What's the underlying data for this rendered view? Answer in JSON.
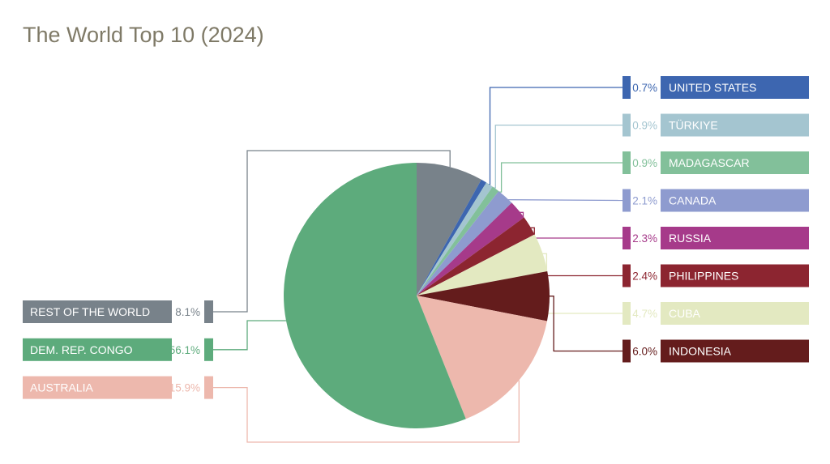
{
  "chart_data": {
    "type": "pie",
    "title": "The World Top 10 (2024)",
    "unit": "%",
    "slices": [
      {
        "name": "REST OF THE WORLD",
        "value": 8.1,
        "label": "8.1%",
        "color": "#78828a",
        "side": "left"
      },
      {
        "name": "UNITED STATES",
        "value": 0.7,
        "label": "0.7%",
        "color": "#3d66b0",
        "side": "right"
      },
      {
        "name": "TÜRKIYE",
        "value": 0.9,
        "label": "0.9%",
        "color": "#a4c5d0",
        "side": "right"
      },
      {
        "name": "MADAGASCAR",
        "value": 0.9,
        "label": "0.9%",
        "color": "#82c09a",
        "side": "right"
      },
      {
        "name": "CANADA",
        "value": 2.1,
        "label": "2.1%",
        "color": "#8e9bcf",
        "side": "right"
      },
      {
        "name": "RUSSIA",
        "value": 2.3,
        "label": "2.3%",
        "color": "#a63a8a",
        "side": "right"
      },
      {
        "name": "PHILIPPINES",
        "value": 2.4,
        "label": "2.4%",
        "color": "#8c2530",
        "side": "right"
      },
      {
        "name": "CUBA",
        "value": 4.7,
        "label": "4.7%",
        "color": "#e3e9c1",
        "side": "right"
      },
      {
        "name": "INDONESIA",
        "value": 6.0,
        "label": "6.0%",
        "color": "#641c1c",
        "side": "right"
      },
      {
        "name": "AUSTRALIA",
        "value": 15.9,
        "label": "15.9%",
        "color": "#edb8ad",
        "side": "left"
      },
      {
        "name": "DEM. REP. CONGO",
        "value": 56.1,
        "label": "56.1%",
        "color": "#5dab7c",
        "side": "left"
      }
    ]
  }
}
